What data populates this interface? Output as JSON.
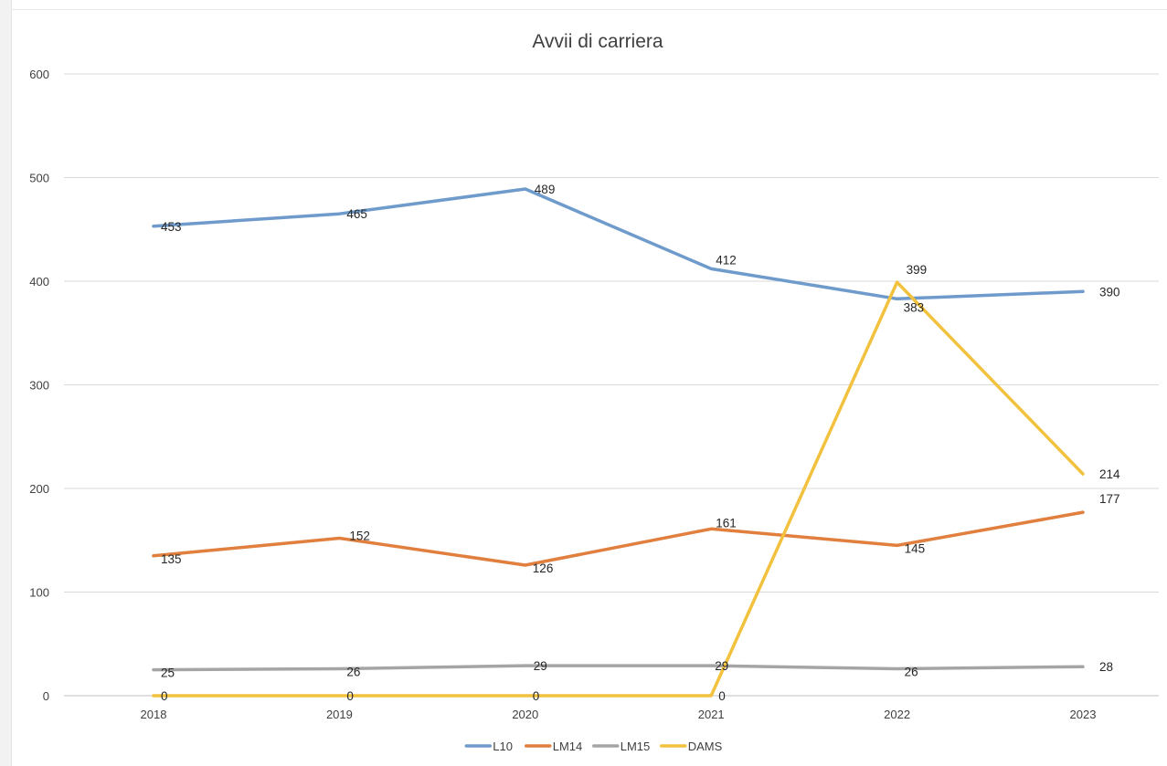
{
  "chart_data": {
    "type": "line",
    "title": "Avvii di carriera",
    "xlabel": "",
    "ylabel": "",
    "categories": [
      "2018",
      "2019",
      "2020",
      "2021",
      "2022",
      "2023"
    ],
    "ylim": [
      0,
      600
    ],
    "yticks": [
      0,
      100,
      200,
      300,
      400,
      500,
      600
    ],
    "grid": "horizontal",
    "legend_position": "bottom",
    "series": [
      {
        "name": "L10",
        "color": "#6e9bcb",
        "values": [
          453,
          465,
          489,
          412,
          383,
          390
        ]
      },
      {
        "name": "LM14",
        "color": "#e07f3e",
        "values": [
          135,
          152,
          126,
          161,
          145,
          177
        ]
      },
      {
        "name": "LM15",
        "color": "#a5a5a5",
        "values": [
          25,
          26,
          29,
          29,
          26,
          28
        ]
      },
      {
        "name": "DAMS",
        "color": "#f2c13e",
        "values": [
          0,
          0,
          0,
          0,
          399,
          214
        ]
      }
    ]
  }
}
